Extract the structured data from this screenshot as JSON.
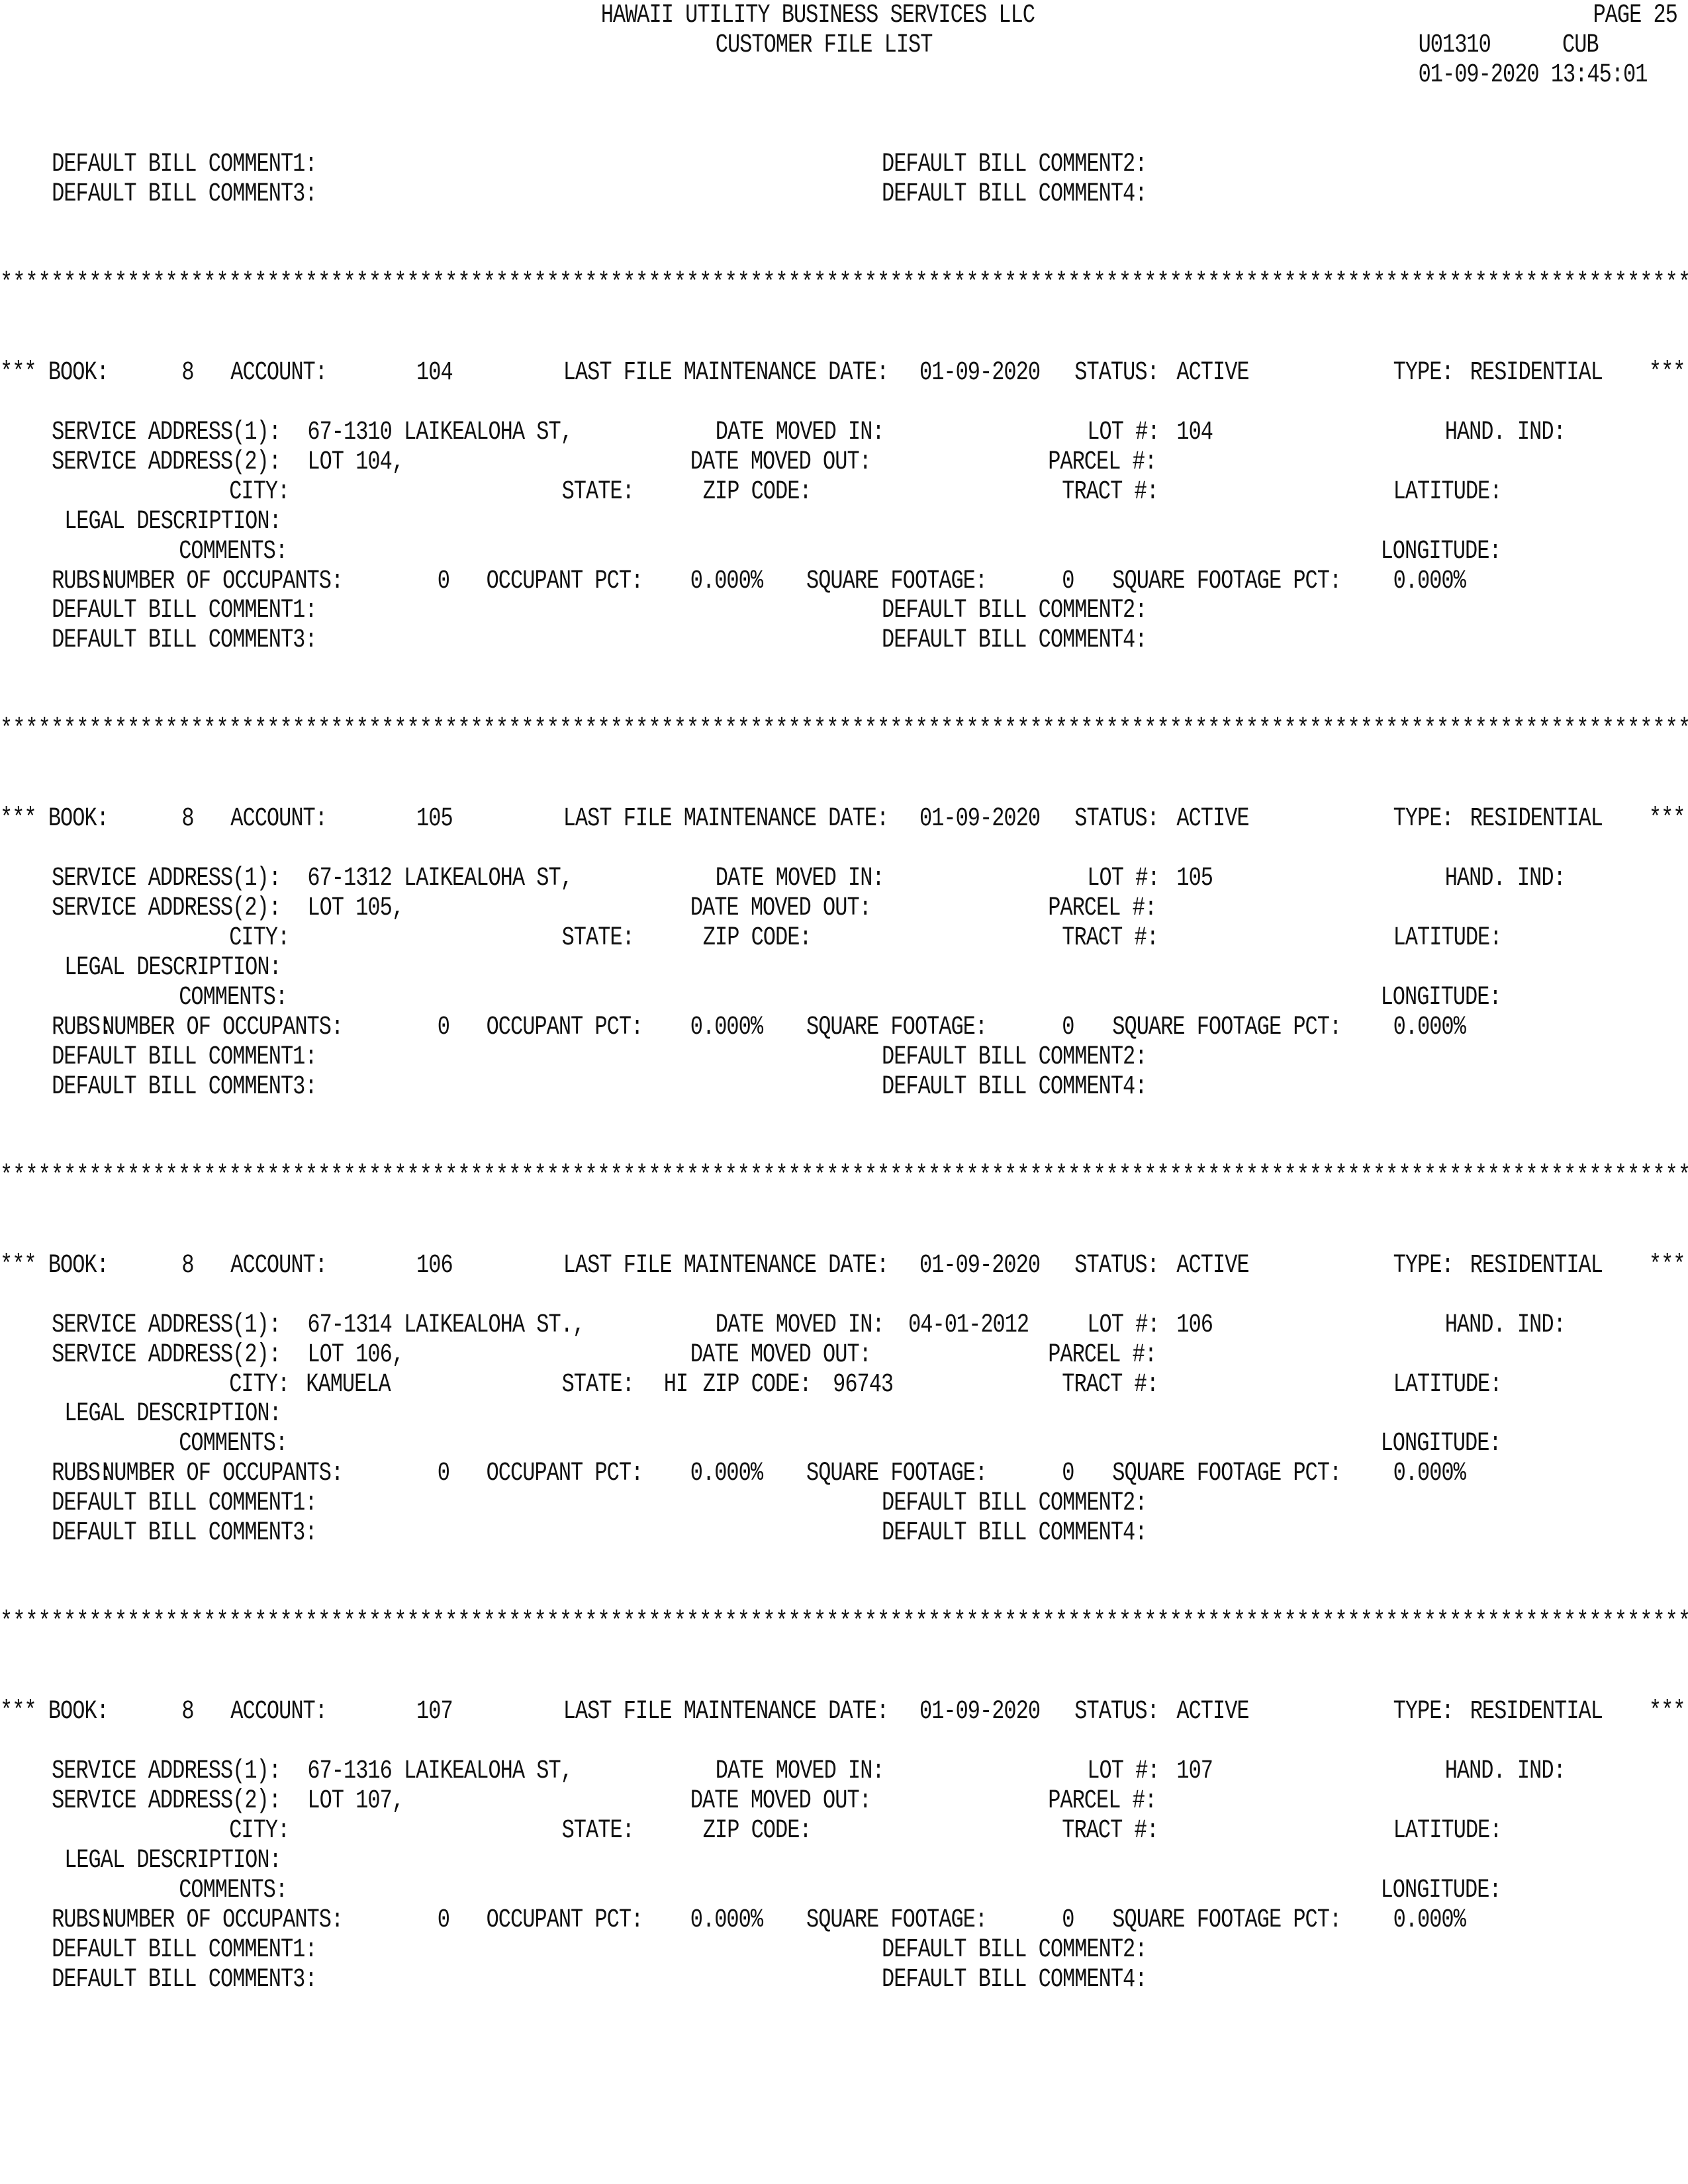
{
  "report": {
    "company": "HAWAII UTILITY BUSINESS SERVICES LLC",
    "title": "CUSTOMER FILE LIST",
    "page": "PAGE 25",
    "program": "U01310",
    "system": "CUB",
    "run_datetime": "01-09-2020 13:45:01"
  },
  "separator": "*************************************************************************************************************************************",
  "labels": {
    "book": "*** BOOK:",
    "account": "ACCOUNT:",
    "last_maint": "LAST FILE MAINTENANCE DATE:",
    "status": "STATUS:",
    "type": "TYPE:",
    "end": "***",
    "sa1": "SERVICE ADDRESS(1):",
    "sa2": "SERVICE ADDRESS(2):",
    "moved_in": "DATE MOVED IN:",
    "moved_out": "DATE MOVED OUT:",
    "lot": "LOT #:",
    "parcel": "PARCEL #:",
    "hand": "HAND. IND:",
    "city": "CITY:",
    "state": "STATE:",
    "zip": "ZIP CODE:",
    "tract": "TRACT #:",
    "latitude": "LATITUDE:",
    "legal": "LEGAL DESCRIPTION:",
    "comments": "COMMENTS:",
    "longitude": "LONGITUDE:",
    "rubs": "RUBS:",
    "occupants": "NUMBER OF OCCUPANTS:",
    "occ_pct": "OCCUPANT PCT:",
    "sqft": "SQUARE FOOTAGE:",
    "sqft_pct": "SQUARE FOOTAGE PCT:",
    "dbc1": "DEFAULT BILL COMMENT1:",
    "dbc2": "DEFAULT BILL COMMENT2:",
    "dbc3": "DEFAULT BILL COMMENT3:",
    "dbc4": "DEFAULT BILL COMMENT4:"
  },
  "records": [
    {
      "book": "8",
      "account": "104",
      "last_maint_date": "01-09-2020",
      "status": "ACTIVE",
      "type": "RESIDENTIAL",
      "sa1": "67-1310 LAIKEALOHA ST,",
      "sa2": "LOT 104,",
      "moved_in": "",
      "lot": "104",
      "city": "",
      "state": "",
      "zip": "",
      "occupants": "0",
      "occ_pct": "0.000%",
      "sqft": "0",
      "sqft_pct": "0.000%"
    },
    {
      "book": "8",
      "account": "105",
      "last_maint_date": "01-09-2020",
      "status": "ACTIVE",
      "type": "RESIDENTIAL",
      "sa1": "67-1312 LAIKEALOHA ST,",
      "sa2": "LOT 105,",
      "moved_in": "",
      "lot": "105",
      "city": "",
      "state": "",
      "zip": "",
      "occupants": "0",
      "occ_pct": "0.000%",
      "sqft": "0",
      "sqft_pct": "0.000%"
    },
    {
      "book": "8",
      "account": "106",
      "last_maint_date": "01-09-2020",
      "status": "ACTIVE",
      "type": "RESIDENTIAL",
      "sa1": "67-1314 LAIKEALOHA ST.,",
      "sa2": "LOT 106,",
      "moved_in": "04-01-2012",
      "lot": "106",
      "city": "KAMUELA",
      "state": "HI",
      "zip": "96743",
      "occupants": "0",
      "occ_pct": "0.000%",
      "sqft": "0",
      "sqft_pct": "0.000%"
    },
    {
      "book": "8",
      "account": "107",
      "last_maint_date": "01-09-2020",
      "status": "ACTIVE",
      "type": "RESIDENTIAL",
      "sa1": "67-1316 LAIKEALOHA ST,",
      "sa2": "LOT 107,",
      "moved_in": "",
      "lot": "107",
      "city": "",
      "state": "",
      "zip": "",
      "occupants": "0",
      "occ_pct": "0.000%",
      "sqft": "0",
      "sqft_pct": "0.000%"
    }
  ]
}
